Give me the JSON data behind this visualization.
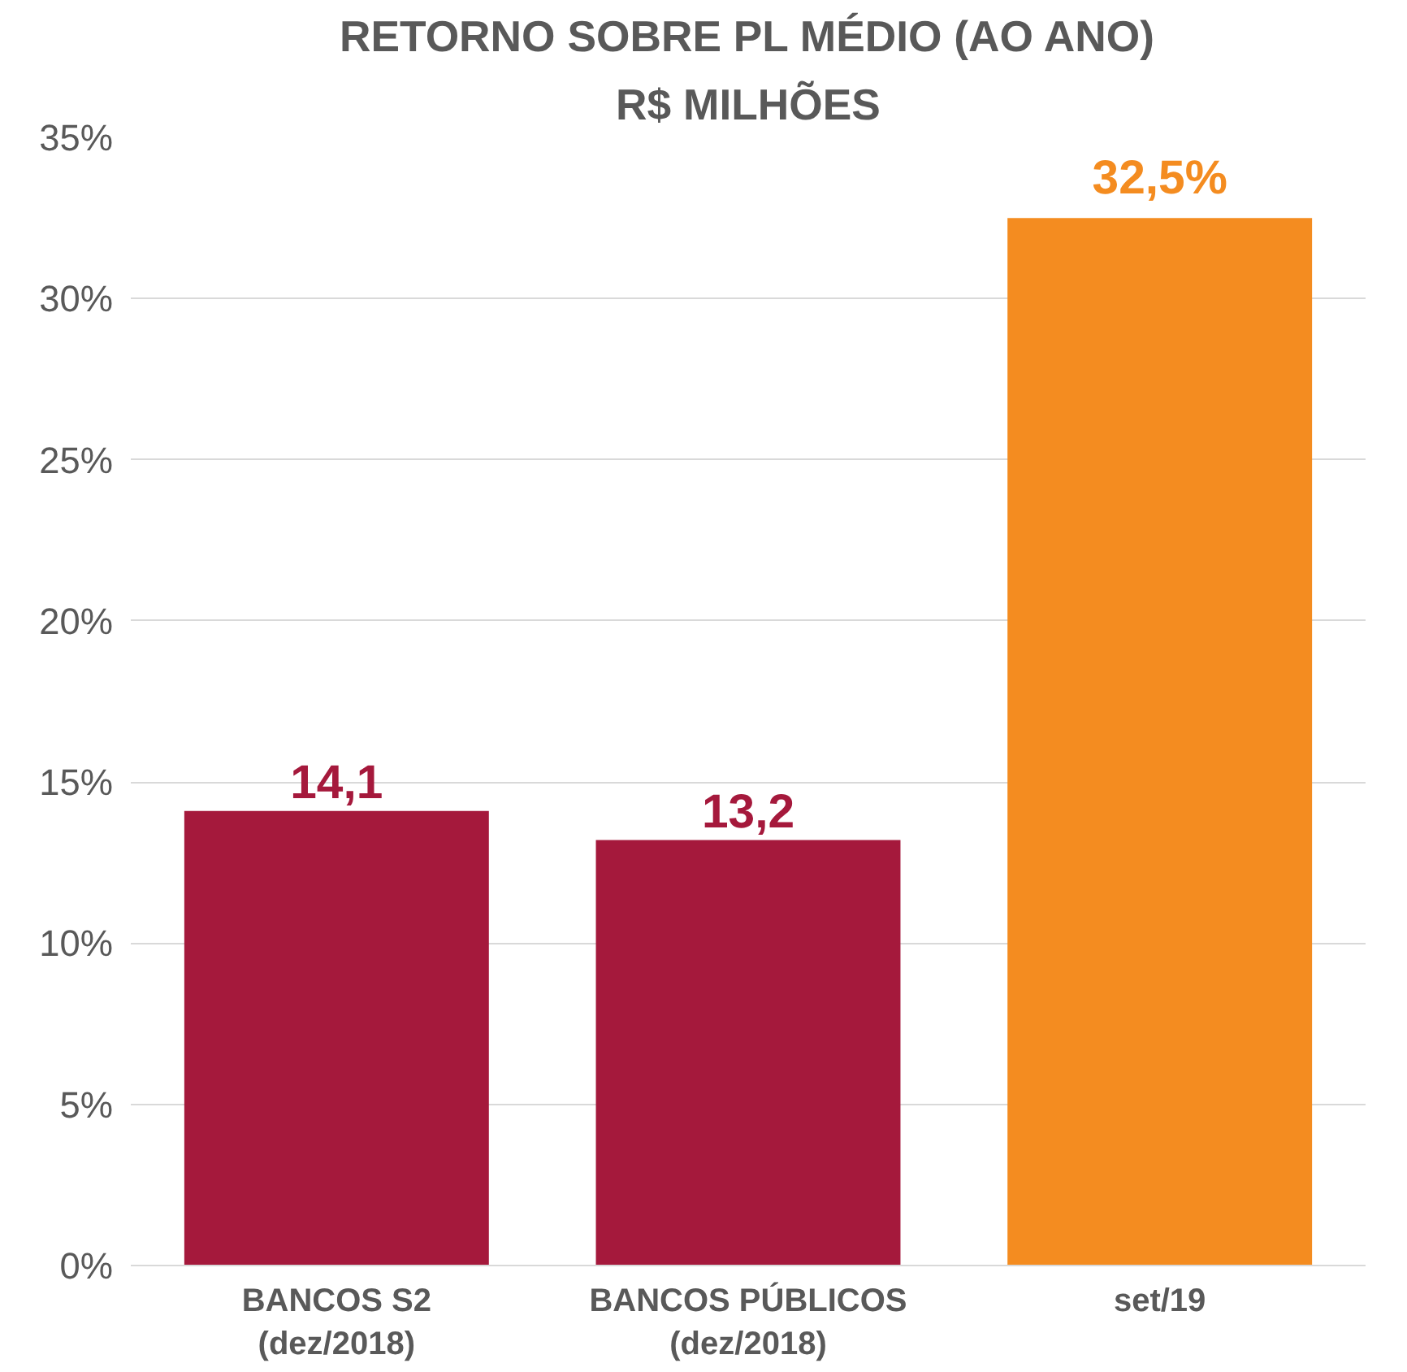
{
  "chart_data": {
    "type": "bar",
    "title": "RETORNO SOBRE PL MÉDIO (AO ANO)",
    "subtitle": "R$ MILHÕES",
    "categories": [
      "BANCOS S2\n(dez/2018)",
      "BANCOS PÚBLICOS\n(dez/2018)",
      "set/19"
    ],
    "values": [
      14.1,
      13.2,
      32.5
    ],
    "colors": [
      "#a5193c",
      "#a5193c",
      "#f48c20"
    ],
    "value_labels": [
      "14,1",
      "13,2",
      "32,5%"
    ],
    "ylim": [
      0,
      35
    ],
    "yticks": [
      {
        "value": 0,
        "label": "0%"
      },
      {
        "value": 5,
        "label": "5%"
      },
      {
        "value": 10,
        "label": "10%"
      },
      {
        "value": 15,
        "label": "15%"
      },
      {
        "value": 20,
        "label": "20%"
      },
      {
        "value": 25,
        "label": "25%"
      },
      {
        "value": 30,
        "label": "30%"
      },
      {
        "value": 35,
        "label": "35%"
      }
    ],
    "grid": "y"
  }
}
